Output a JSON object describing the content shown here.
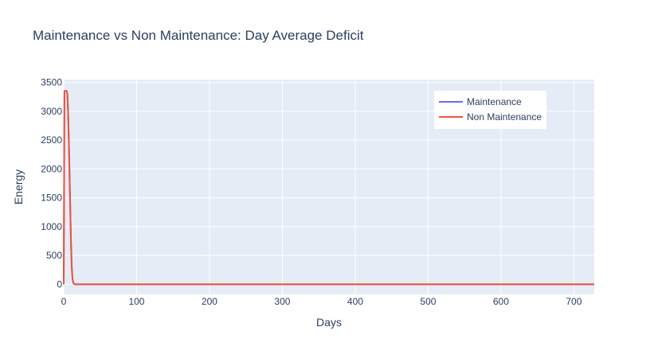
{
  "chart_data": {
    "type": "line",
    "title": "Maintenance vs Non Maintenance: Day Average Deficit",
    "xlabel": "Days",
    "ylabel": "Energy",
    "xlim": [
      0,
      728
    ],
    "ylim": [
      -175,
      3550
    ],
    "x_ticks": [
      0,
      100,
      200,
      300,
      400,
      500,
      600,
      700
    ],
    "y_ticks": [
      0,
      500,
      1000,
      1500,
      2000,
      2500,
      3000,
      3500
    ],
    "grid": true,
    "legend_position": "top-right",
    "series": [
      {
        "name": "Maintenance",
        "color": "#636efa",
        "x": [
          0,
          1,
          2,
          3,
          4,
          5,
          6,
          7,
          8,
          9,
          10,
          11,
          12,
          13,
          14,
          16,
          20,
          30,
          100,
          200,
          300,
          400,
          500,
          600,
          700,
          728
        ],
        "y": [
          0,
          3350,
          3355,
          3355,
          3350,
          3300,
          3000,
          2500,
          1900,
          1300,
          700,
          300,
          100,
          30,
          5,
          0,
          0,
          0,
          0,
          0,
          0,
          0,
          0,
          0,
          0,
          0
        ]
      },
      {
        "name": "Non Maintenance",
        "color": "#ef553b",
        "x": [
          0,
          1,
          2,
          3,
          4,
          5,
          6,
          7,
          8,
          9,
          10,
          11,
          12,
          13,
          14,
          16,
          20,
          30,
          100,
          200,
          300,
          400,
          500,
          600,
          700,
          728
        ],
        "y": [
          0,
          3350,
          3355,
          3355,
          3350,
          3300,
          3000,
          2500,
          1900,
          1300,
          700,
          300,
          100,
          30,
          5,
          0,
          0,
          0,
          0,
          0,
          0,
          0,
          0,
          0,
          0,
          0
        ]
      }
    ]
  },
  "colors": {
    "plot_background": "#e5ecf6",
    "grid": "#ffffff",
    "text": "#2a3f5f"
  }
}
